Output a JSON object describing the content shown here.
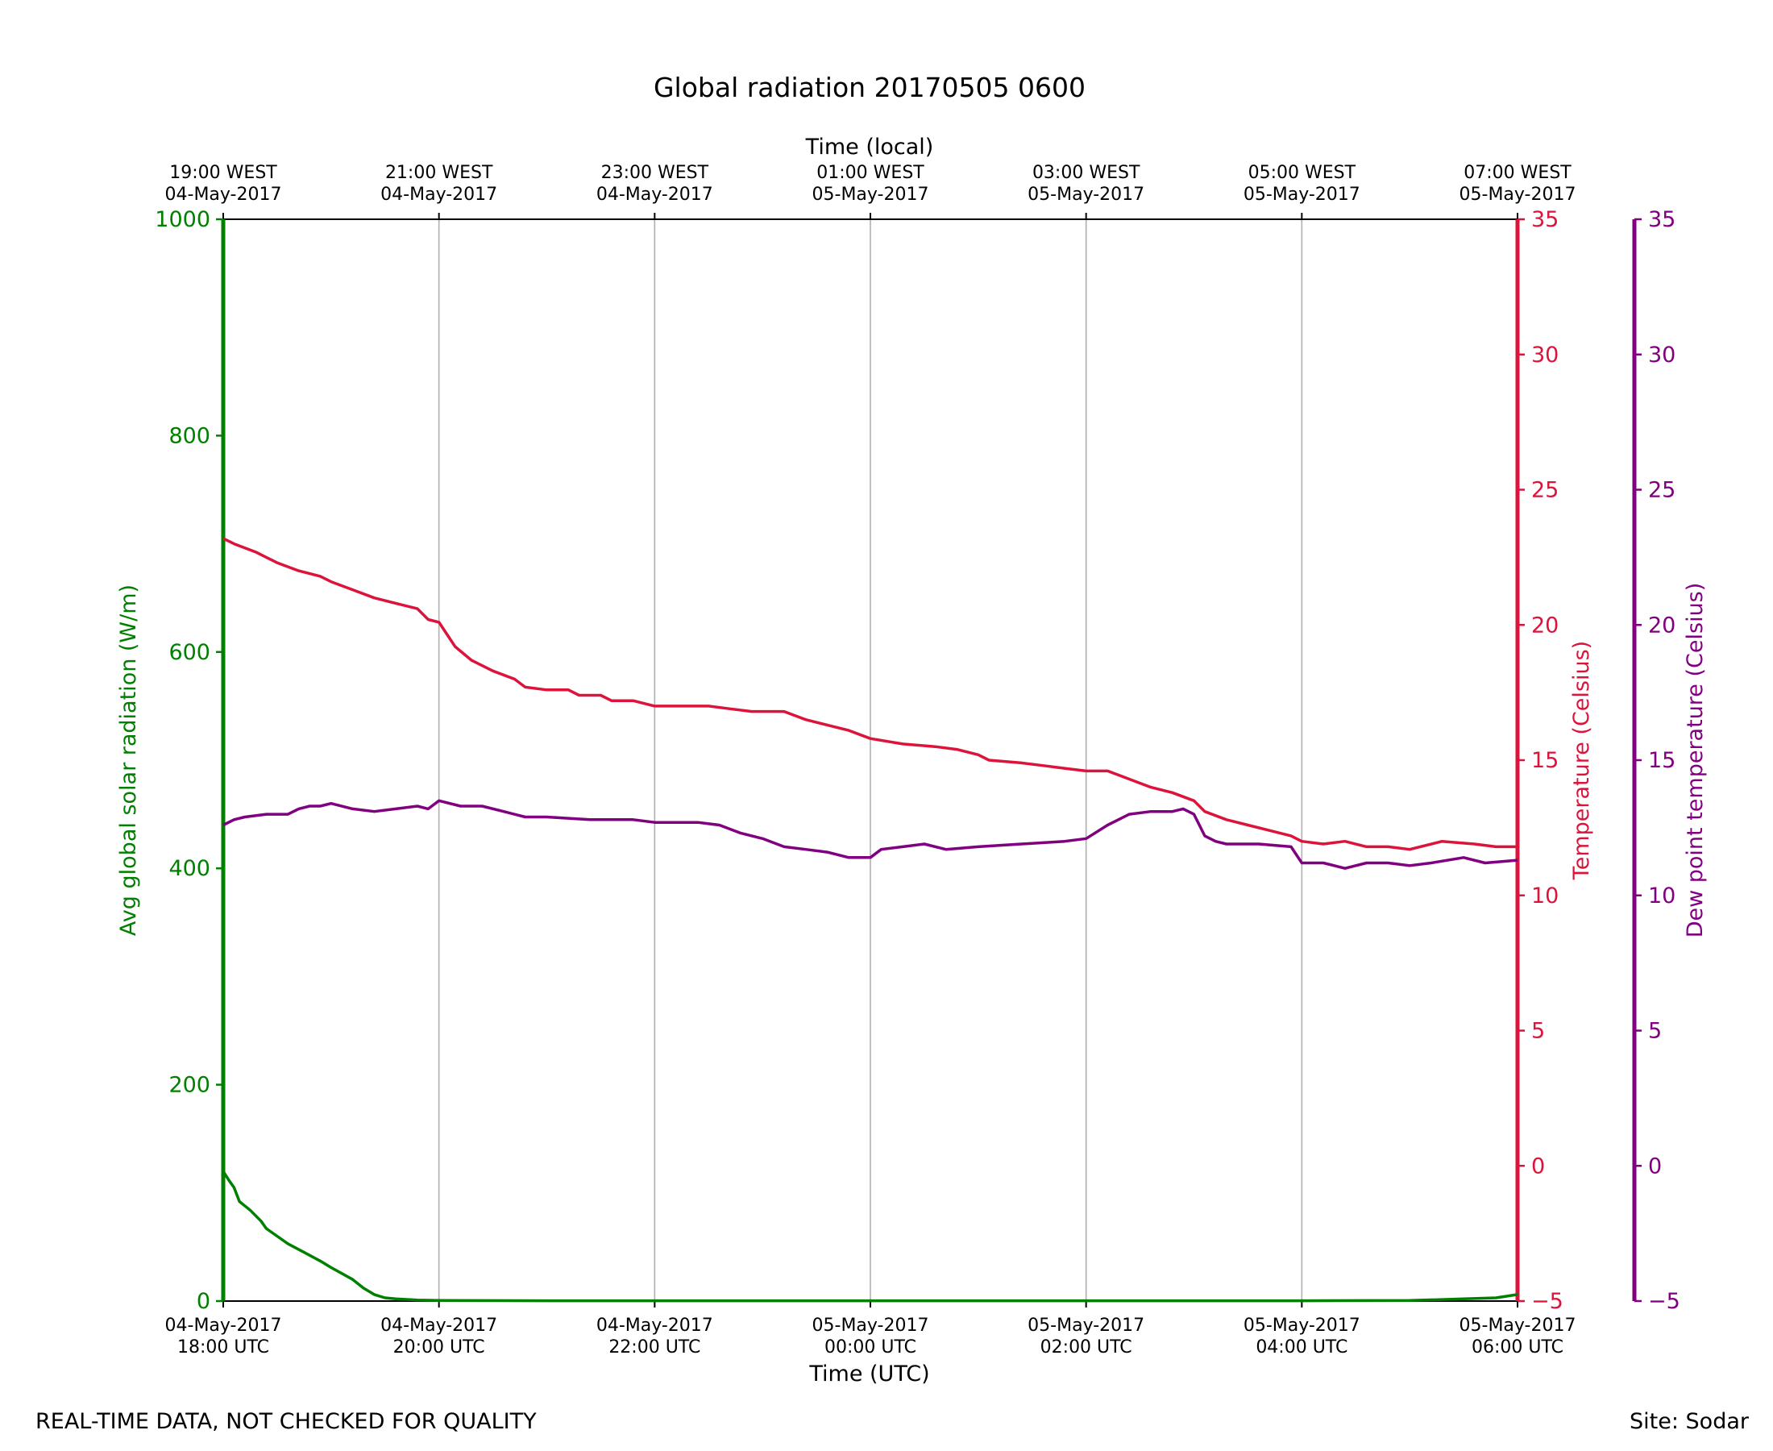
{
  "chart_data": {
    "type": "line",
    "title": "Global radiation 20170505 0600",
    "xlabel": "Time (UTC)",
    "xlabel_top": "Time (local)",
    "x_range": [
      "04-May-2017 18:00 UTC",
      "05-May-2017 06:00 UTC"
    ],
    "x_unit": "hours since 04-May-2017 18:00 UTC",
    "x_ticks_bottom": [
      {
        "line1": "04-May-2017",
        "line2": "18:00 UTC"
      },
      {
        "line1": "04-May-2017",
        "line2": "20:00 UTC"
      },
      {
        "line1": "04-May-2017",
        "line2": "22:00 UTC"
      },
      {
        "line1": "05-May-2017",
        "line2": "00:00 UTC"
      },
      {
        "line1": "05-May-2017",
        "line2": "02:00 UTC"
      },
      {
        "line1": "05-May-2017",
        "line2": "04:00 UTC"
      },
      {
        "line1": "05-May-2017",
        "line2": "06:00 UTC"
      }
    ],
    "x_ticks_top": [
      {
        "line1": "19:00 WEST",
        "line2": "04-May-2017"
      },
      {
        "line1": "21:00 WEST",
        "line2": "04-May-2017"
      },
      {
        "line1": "23:00 WEST",
        "line2": "04-May-2017"
      },
      {
        "line1": "01:00 WEST",
        "line2": "05-May-2017"
      },
      {
        "line1": "03:00 WEST",
        "line2": "05-May-2017"
      },
      {
        "line1": "05:00 WEST",
        "line2": "05-May-2017"
      },
      {
        "line1": "07:00 WEST",
        "line2": "05-May-2017"
      }
    ],
    "axes": {
      "radiation": {
        "label": "Avg global solar radiation (W/m)",
        "ylim": [
          0,
          1000
        ],
        "ticks": [
          "0",
          "200",
          "400",
          "600",
          "800",
          "1000"
        ],
        "color": "#008000"
      },
      "temperature": {
        "label": "Temperature (Celsius)",
        "ylim": [
          -5,
          35
        ],
        "ticks": [
          "−5",
          "0",
          "5",
          "10",
          "15",
          "20",
          "25",
          "30",
          "35"
        ],
        "color": "#dc143c"
      },
      "dewpoint": {
        "label": "Dew point temperature (Celsius)",
        "ylim": [
          -5,
          35
        ],
        "ticks": [
          "−5",
          "0",
          "5",
          "10",
          "15",
          "20",
          "25",
          "30",
          "35"
        ],
        "color": "#800080"
      }
    },
    "grid": "vertical",
    "series": [
      {
        "axis": "radiation",
        "color": "#008000",
        "points": [
          [
            0,
            120
          ],
          [
            0.05,
            112
          ],
          [
            0.1,
            105
          ],
          [
            0.15,
            92
          ],
          [
            0.25,
            84
          ],
          [
            0.35,
            74
          ],
          [
            0.4,
            67
          ],
          [
            0.5,
            60
          ],
          [
            0.6,
            53
          ],
          [
            0.75,
            45
          ],
          [
            0.9,
            37
          ],
          [
            1.0,
            31
          ],
          [
            1.2,
            20
          ],
          [
            1.3,
            12
          ],
          [
            1.4,
            6
          ],
          [
            1.5,
            3
          ],
          [
            1.6,
            2
          ],
          [
            1.8,
            1
          ],
          [
            2.0,
            0.5
          ],
          [
            3,
            0.3
          ],
          [
            5,
            0.3
          ],
          [
            8,
            0.3
          ],
          [
            10,
            0.3
          ],
          [
            11.0,
            0.5
          ],
          [
            11.5,
            2
          ],
          [
            11.8,
            3
          ],
          [
            12.0,
            6
          ]
        ]
      },
      {
        "axis": "temperature",
        "color": "#dc143c",
        "points": [
          [
            0,
            23.2
          ],
          [
            0.1,
            23.0
          ],
          [
            0.3,
            22.7
          ],
          [
            0.4,
            22.5
          ],
          [
            0.5,
            22.3
          ],
          [
            0.7,
            22.0
          ],
          [
            0.9,
            21.8
          ],
          [
            1.0,
            21.6
          ],
          [
            1.2,
            21.3
          ],
          [
            1.4,
            21.0
          ],
          [
            1.6,
            20.8
          ],
          [
            1.8,
            20.6
          ],
          [
            1.9,
            20.2
          ],
          [
            2.0,
            20.1
          ],
          [
            2.1,
            19.5
          ],
          [
            2.15,
            19.2
          ],
          [
            2.3,
            18.7
          ],
          [
            2.5,
            18.3
          ],
          [
            2.7,
            18.0
          ],
          [
            2.8,
            17.7
          ],
          [
            3.0,
            17.6
          ],
          [
            3.2,
            17.6
          ],
          [
            3.3,
            17.4
          ],
          [
            3.5,
            17.4
          ],
          [
            3.6,
            17.2
          ],
          [
            3.8,
            17.2
          ],
          [
            4.0,
            17.0
          ],
          [
            4.5,
            17.0
          ],
          [
            4.7,
            16.9
          ],
          [
            4.9,
            16.8
          ],
          [
            5.2,
            16.8
          ],
          [
            5.4,
            16.5
          ],
          [
            5.6,
            16.3
          ],
          [
            5.8,
            16.1
          ],
          [
            6.0,
            15.8
          ],
          [
            6.3,
            15.6
          ],
          [
            6.6,
            15.5
          ],
          [
            6.8,
            15.4
          ],
          [
            7.0,
            15.2
          ],
          [
            7.1,
            15.0
          ],
          [
            7.4,
            14.9
          ],
          [
            7.6,
            14.8
          ],
          [
            7.8,
            14.7
          ],
          [
            8.0,
            14.6
          ],
          [
            8.2,
            14.6
          ],
          [
            8.4,
            14.3
          ],
          [
            8.6,
            14.0
          ],
          [
            8.8,
            13.8
          ],
          [
            9.0,
            13.5
          ],
          [
            9.1,
            13.1
          ],
          [
            9.3,
            12.8
          ],
          [
            9.5,
            12.6
          ],
          [
            9.7,
            12.4
          ],
          [
            9.9,
            12.2
          ],
          [
            10.0,
            12.0
          ],
          [
            10.2,
            11.9
          ],
          [
            10.4,
            12.0
          ],
          [
            10.6,
            11.8
          ],
          [
            10.8,
            11.8
          ],
          [
            11.0,
            11.7
          ],
          [
            11.3,
            12.0
          ],
          [
            11.6,
            11.9
          ],
          [
            11.8,
            11.8
          ],
          [
            12.0,
            11.8
          ]
        ]
      },
      {
        "axis": "dewpoint",
        "color": "#800080",
        "points": [
          [
            0,
            12.6
          ],
          [
            0.1,
            12.8
          ],
          [
            0.2,
            12.9
          ],
          [
            0.4,
            13.0
          ],
          [
            0.6,
            13.0
          ],
          [
            0.7,
            13.2
          ],
          [
            0.8,
            13.3
          ],
          [
            0.9,
            13.3
          ],
          [
            1.0,
            13.4
          ],
          [
            1.2,
            13.2
          ],
          [
            1.4,
            13.1
          ],
          [
            1.6,
            13.2
          ],
          [
            1.8,
            13.3
          ],
          [
            1.9,
            13.2
          ],
          [
            2.0,
            13.5
          ],
          [
            2.2,
            13.3
          ],
          [
            2.4,
            13.3
          ],
          [
            2.6,
            13.1
          ],
          [
            2.8,
            12.9
          ],
          [
            3.0,
            12.9
          ],
          [
            3.4,
            12.8
          ],
          [
            3.8,
            12.8
          ],
          [
            4.0,
            12.7
          ],
          [
            4.4,
            12.7
          ],
          [
            4.6,
            12.6
          ],
          [
            4.8,
            12.3
          ],
          [
            5.0,
            12.1
          ],
          [
            5.2,
            11.8
          ],
          [
            5.4,
            11.7
          ],
          [
            5.6,
            11.6
          ],
          [
            5.8,
            11.4
          ],
          [
            6.0,
            11.4
          ],
          [
            6.1,
            11.7
          ],
          [
            6.3,
            11.8
          ],
          [
            6.5,
            11.9
          ],
          [
            6.7,
            11.7
          ],
          [
            7.0,
            11.8
          ],
          [
            7.4,
            11.9
          ],
          [
            7.8,
            12.0
          ],
          [
            8.0,
            12.1
          ],
          [
            8.2,
            12.6
          ],
          [
            8.4,
            13.0
          ],
          [
            8.6,
            13.1
          ],
          [
            8.8,
            13.1
          ],
          [
            8.9,
            13.2
          ],
          [
            9.0,
            13.0
          ],
          [
            9.1,
            12.2
          ],
          [
            9.2,
            12.0
          ],
          [
            9.3,
            11.9
          ],
          [
            9.6,
            11.9
          ],
          [
            9.9,
            11.8
          ],
          [
            10.0,
            11.2
          ],
          [
            10.2,
            11.2
          ],
          [
            10.4,
            11.0
          ],
          [
            10.6,
            11.2
          ],
          [
            10.8,
            11.2
          ],
          [
            11.0,
            11.1
          ],
          [
            11.2,
            11.2
          ],
          [
            11.5,
            11.4
          ],
          [
            11.7,
            11.2
          ],
          [
            12.0,
            11.3
          ]
        ]
      }
    ]
  },
  "footer": {
    "left": "REAL-TIME DATA, NOT CHECKED FOR QUALITY",
    "right": "Site: Sodar"
  }
}
